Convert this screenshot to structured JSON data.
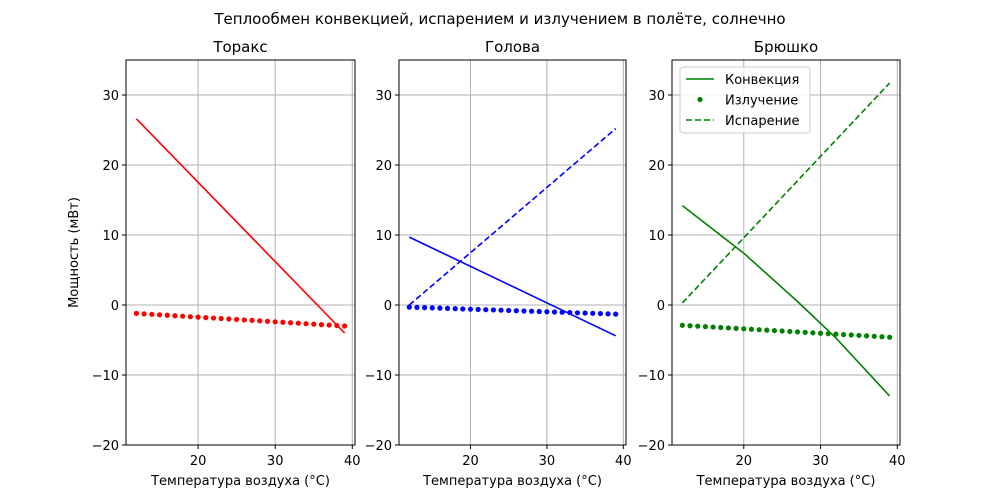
{
  "figure": {
    "title": "Теплообмен конвекцией, испарением и излучением в полёте, солнечно"
  },
  "legend": {
    "entries": [
      {
        "label": "Конвекция",
        "style": "solid"
      },
      {
        "label": "Излучение",
        "style": "dots"
      },
      {
        "label": "Испарение",
        "style": "dashed"
      }
    ]
  },
  "chart_data": [
    {
      "type": "line",
      "title": "Торакс",
      "xlabel": "Температура воздуха (°C)",
      "ylabel": "Мощность (мВт)",
      "xlim": [
        10.65,
        40.35
      ],
      "ylim": [
        -20,
        35
      ],
      "xticks": [
        20,
        30,
        40
      ],
      "yticks": [
        -20,
        -10,
        0,
        10,
        20,
        30
      ],
      "grid": true,
      "color": "#ff0000",
      "series": [
        {
          "name": "Конвекция",
          "style": "solid",
          "x": [
            12,
            39
          ],
          "values": [
            26.6,
            -4.0
          ]
        },
        {
          "name": "Излучение",
          "style": "dots",
          "x_start": 12,
          "x_end": 39,
          "values_start": -1.2,
          "values_end": -3.0
        }
      ]
    },
    {
      "type": "line",
      "title": "Голова",
      "xlabel": "Температура воздуха (°C)",
      "ylabel": "",
      "xlim": [
        10.65,
        40.35
      ],
      "ylim": [
        -20,
        35
      ],
      "xticks": [
        20,
        30,
        40
      ],
      "yticks": [
        -20,
        -10,
        0,
        10,
        20,
        30
      ],
      "grid": true,
      "color": "#0000ff",
      "series": [
        {
          "name": "Конвекция",
          "style": "solid",
          "x": [
            12,
            39
          ],
          "values": [
            9.7,
            -4.4
          ]
        },
        {
          "name": "Излучение",
          "style": "dots",
          "x_start": 12,
          "x_end": 39,
          "values_start": -0.3,
          "values_end": -1.3
        },
        {
          "name": "Испарение",
          "style": "dashed",
          "x": [
            12,
            39
          ],
          "values": [
            0.0,
            25.2
          ]
        }
      ]
    },
    {
      "type": "line",
      "title": "Брюшко",
      "xlabel": "Температура воздуха (°C)",
      "ylabel": "",
      "xlim": [
        10.65,
        40.35
      ],
      "ylim": [
        -20,
        35
      ],
      "xticks": [
        20,
        30,
        40
      ],
      "yticks": [
        -20,
        -10,
        0,
        10,
        20,
        30
      ],
      "grid": true,
      "legend_position": "upper left",
      "color": "#008000",
      "series": [
        {
          "name": "Конвекция",
          "style": "solid",
          "x": [
            12,
            20,
            27,
            32,
            39
          ],
          "values": [
            14.2,
            7.4,
            0.5,
            -4.7,
            -13.0
          ]
        },
        {
          "name": "Излучение",
          "style": "dots",
          "x_start": 12,
          "x_end": 39,
          "values_start": -2.9,
          "values_end": -4.6
        },
        {
          "name": "Испарение",
          "style": "dashed",
          "x": [
            12,
            39
          ],
          "values": [
            0.3,
            31.7
          ]
        }
      ]
    }
  ]
}
